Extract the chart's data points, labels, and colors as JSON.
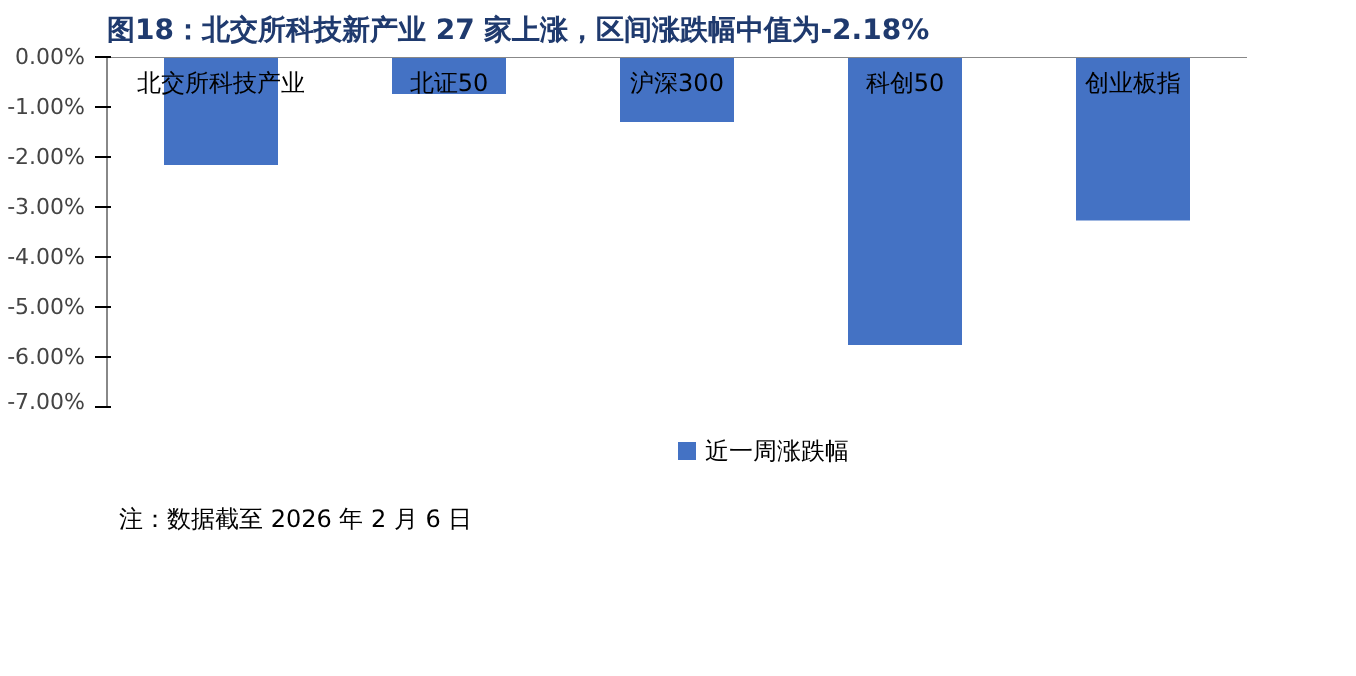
{
  "chart_data": {
    "type": "bar",
    "title": "图18：北交所科技新产业 27 家上涨，区间涨跌幅中值为-2.18%",
    "categories": [
      "北交所科技产业",
      "北证50",
      "沪深300",
      "科创50",
      "创业板指"
    ],
    "series": [
      {
        "name": "近一周涨跌幅",
        "color": "#4472c4",
        "values": [
          -2.16,
          -0.74,
          -1.3,
          -5.76,
          -3.27
        ]
      }
    ],
    "ylim": [
      -7,
      0
    ],
    "yticks": [
      {
        "value": 0,
        "label": "0.00%"
      },
      {
        "value": -1,
        "label": "-1.00%"
      },
      {
        "value": -2,
        "label": "-2.00%"
      },
      {
        "value": -3,
        "label": "-3.00%"
      },
      {
        "value": -4,
        "label": "-4.00%"
      },
      {
        "value": -5,
        "label": "-5.00%"
      },
      {
        "value": -6,
        "label": "-6.00%"
      },
      {
        "value": -7,
        "label": "-7.00%"
      }
    ],
    "legend": "bottom",
    "grid": false,
    "annotations": [
      "注：数据截至 2026 年 2 月 6 日"
    ]
  }
}
